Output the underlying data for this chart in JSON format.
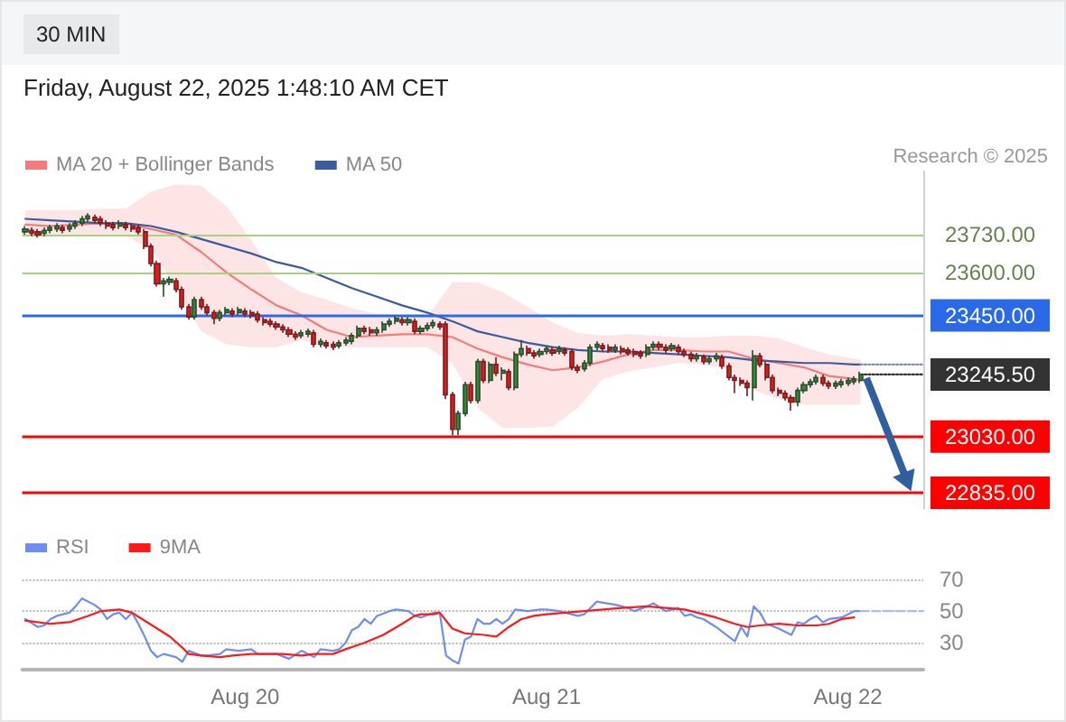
{
  "chart_data": [
    {
      "type": "candlestick",
      "subtitle": "Friday, August 22, 2025 1:48:10 AM CET",
      "annotations": [
        "30 MIN",
        "Research © 2025"
      ],
      "legend": "top left",
      "marker": "none",
      "tick_labels": "y",
      "xlim": [
        "2025-08-19T06:15",
        "2025-08-22T06:00"
      ],
      "ylim": [
        22780,
        23950
      ],
      "yticks": [
        {
          "value": 22835,
          "label": "22835.00"
        },
        {
          "value": 23030,
          "label": "23030.00"
        },
        {
          "value": 23245.5,
          "label": "23245.50"
        },
        {
          "value": 23450,
          "label": "23450.00"
        },
        {
          "value": 23600,
          "label": "23600.00"
        },
        {
          "value": 23730,
          "label": "23730.00"
        }
      ],
      "x": [
        "2025-08-19T06:30",
        "2025-08-19T07:00",
        "2025-08-19T07:30",
        "2025-08-19T08:00",
        "2025-08-19T08:30",
        "2025-08-19T09:00",
        "2025-08-19T09:30",
        "2025-08-19T10:00",
        "2025-08-19T10:30",
        "2025-08-19T11:00",
        "2025-08-19T11:30",
        "2025-08-19T12:00",
        "2025-08-19T12:30",
        "2025-08-19T13:00",
        "2025-08-19T13:30",
        "2025-08-19T14:00",
        "2025-08-19T14:30",
        "2025-08-19T15:00",
        "2025-08-19T15:30",
        "2025-08-19T16:00",
        "2025-08-19T16:30",
        "2025-08-19T17:00",
        "2025-08-19T17:30",
        "2025-08-19T18:00",
        "2025-08-19T18:30",
        "2025-08-19T19:00",
        "2025-08-19T19:30",
        "2025-08-19T20:00",
        "2025-08-19T20:30",
        "2025-08-19T21:00",
        "2025-08-19T21:30",
        "2025-08-19T22:00",
        "2025-08-19T22:30",
        "2025-08-19T23:00",
        "2025-08-19T23:30",
        "2025-08-20T00:00",
        "2025-08-20T00:30",
        "2025-08-20T01:00",
        "2025-08-20T01:30",
        "2025-08-20T02:00",
        "2025-08-20T02:30",
        "2025-08-20T03:00",
        "2025-08-20T03:30",
        "2025-08-20T04:00",
        "2025-08-20T04:30",
        "2025-08-20T05:00",
        "2025-08-20T05:30",
        "2025-08-20T06:00",
        "2025-08-20T06:30",
        "2025-08-20T07:00",
        "2025-08-20T07:30",
        "2025-08-20T08:00",
        "2025-08-20T08:30",
        "2025-08-20T09:00",
        "2025-08-20T09:30",
        "2025-08-20T10:00",
        "2025-08-20T10:30",
        "2025-08-20T11:00",
        "2025-08-20T11:30",
        "2025-08-20T12:00",
        "2025-08-20T12:30",
        "2025-08-20T13:00",
        "2025-08-20T13:30",
        "2025-08-20T14:00",
        "2025-08-20T14:30",
        "2025-08-20T15:00",
        "2025-08-20T15:30",
        "2025-08-20T16:00",
        "2025-08-20T16:30",
        "2025-08-20T17:00",
        "2025-08-20T17:30",
        "2025-08-20T18:00",
        "2025-08-20T18:30",
        "2025-08-20T19:00",
        "2025-08-20T19:30",
        "2025-08-20T20:00",
        "2025-08-20T20:30",
        "2025-08-20T21:00",
        "2025-08-20T21:30",
        "2025-08-20T22:00",
        "2025-08-20T22:30",
        "2025-08-20T23:00",
        "2025-08-20T23:30",
        "2025-08-21T00:00",
        "2025-08-21T00:30",
        "2025-08-21T01:00",
        "2025-08-21T01:30",
        "2025-08-21T02:00",
        "2025-08-21T02:30",
        "2025-08-21T03:00",
        "2025-08-21T03:30",
        "2025-08-21T04:00",
        "2025-08-21T04:30",
        "2025-08-21T05:00",
        "2025-08-21T05:30",
        "2025-08-21T06:00",
        "2025-08-21T06:30",
        "2025-08-21T07:00",
        "2025-08-21T07:30",
        "2025-08-21T08:00",
        "2025-08-21T08:30",
        "2025-08-21T09:00",
        "2025-08-21T09:30",
        "2025-08-21T10:00",
        "2025-08-21T10:30",
        "2025-08-21T11:00",
        "2025-08-21T11:30",
        "2025-08-21T12:00",
        "2025-08-21T12:30",
        "2025-08-21T13:00",
        "2025-08-21T13:30",
        "2025-08-21T14:00",
        "2025-08-21T14:30",
        "2025-08-21T15:00",
        "2025-08-21T15:30",
        "2025-08-21T16:00",
        "2025-08-21T16:30",
        "2025-08-21T17:00",
        "2025-08-21T17:30",
        "2025-08-21T18:00",
        "2025-08-21T18:30",
        "2025-08-21T19:00",
        "2025-08-21T19:30",
        "2025-08-21T20:00",
        "2025-08-21T20:30",
        "2025-08-21T21:00",
        "2025-08-21T21:30",
        "2025-08-21T22:00",
        "2025-08-21T22:30",
        "2025-08-21T23:00",
        "2025-08-21T23:30",
        "2025-08-22T00:00",
        "2025-08-22T00:30",
        "2025-08-22T01:00"
      ],
      "ohlc": [
        [
          23740,
          23760,
          23730,
          23750
        ],
        [
          23745,
          23755,
          23725,
          23735
        ],
        [
          23740,
          23750,
          23720,
          23730
        ],
        [
          23735,
          23755,
          23725,
          23745
        ],
        [
          23745,
          23765,
          23735,
          23755
        ],
        [
          23750,
          23770,
          23740,
          23760
        ],
        [
          23755,
          23765,
          23735,
          23745
        ],
        [
          23750,
          23770,
          23740,
          23760
        ],
        [
          23760,
          23780,
          23750,
          23770
        ],
        [
          23770,
          23795,
          23760,
          23785
        ],
        [
          23785,
          23805,
          23775,
          23795
        ],
        [
          23790,
          23800,
          23770,
          23780
        ],
        [
          23785,
          23795,
          23760,
          23770
        ],
        [
          23770,
          23780,
          23750,
          23760
        ],
        [
          23765,
          23775,
          23745,
          23755
        ],
        [
          23760,
          23780,
          23750,
          23770
        ],
        [
          23765,
          23775,
          23745,
          23755
        ],
        [
          23760,
          23770,
          23740,
          23750
        ],
        [
          23755,
          23765,
          23730,
          23740
        ],
        [
          23740,
          23750,
          23680,
          23690
        ],
        [
          23690,
          23700,
          23620,
          23630
        ],
        [
          23630,
          23640,
          23550,
          23560
        ],
        [
          23560,
          23580,
          23515,
          23570
        ],
        [
          23565,
          23585,
          23555,
          23575
        ],
        [
          23570,
          23580,
          23530,
          23540
        ],
        [
          23540,
          23550,
          23470,
          23480
        ],
        [
          23480,
          23490,
          23435,
          23445
        ],
        [
          23445,
          23515,
          23435,
          23505
        ],
        [
          23505,
          23515,
          23470,
          23480
        ],
        [
          23480,
          23490,
          23450,
          23460
        ],
        [
          23460,
          23470,
          23420,
          23440
        ],
        [
          23440,
          23470,
          23430,
          23460
        ],
        [
          23460,
          23480,
          23450,
          23470
        ],
        [
          23465,
          23475,
          23445,
          23455
        ],
        [
          23460,
          23480,
          23450,
          23470
        ],
        [
          23465,
          23475,
          23445,
          23455
        ],
        [
          23460,
          23470,
          23440,
          23450
        ],
        [
          23455,
          23465,
          23425,
          23435
        ],
        [
          23435,
          23445,
          23415,
          23425
        ],
        [
          23430,
          23440,
          23410,
          23420
        ],
        [
          23420,
          23430,
          23400,
          23410
        ],
        [
          23410,
          23420,
          23390,
          23400
        ],
        [
          23400,
          23410,
          23375,
          23385
        ],
        [
          23385,
          23395,
          23365,
          23375
        ],
        [
          23380,
          23400,
          23370,
          23390
        ],
        [
          23385,
          23405,
          23375,
          23395
        ],
        [
          23390,
          23400,
          23340,
          23350
        ],
        [
          23350,
          23370,
          23340,
          23360
        ],
        [
          23355,
          23365,
          23335,
          23345
        ],
        [
          23350,
          23360,
          23330,
          23340
        ],
        [
          23345,
          23365,
          23335,
          23355
        ],
        [
          23355,
          23375,
          23345,
          23365
        ],
        [
          23360,
          23390,
          23350,
          23380
        ],
        [
          23380,
          23415,
          23370,
          23405
        ],
        [
          23405,
          23415,
          23385,
          23395
        ],
        [
          23400,
          23410,
          23380,
          23390
        ],
        [
          23390,
          23410,
          23380,
          23400
        ],
        [
          23400,
          23430,
          23390,
          23420
        ],
        [
          23420,
          23440,
          23410,
          23430
        ],
        [
          23430,
          23450,
          23420,
          23440
        ],
        [
          23435,
          23445,
          23415,
          23425
        ],
        [
          23425,
          23445,
          23415,
          23435
        ],
        [
          23430,
          23440,
          23385,
          23395
        ],
        [
          23395,
          23415,
          23385,
          23405
        ],
        [
          23405,
          23425,
          23395,
          23415
        ],
        [
          23415,
          23435,
          23405,
          23425
        ],
        [
          23420,
          23430,
          23400,
          23410
        ],
        [
          23420,
          23430,
          23160,
          23175
        ],
        [
          23175,
          23185,
          23035,
          23055
        ],
        [
          23055,
          23120,
          23035,
          23110
        ],
        [
          23110,
          23220,
          23100,
          23210
        ],
        [
          23210,
          23220,
          23145,
          23155
        ],
        [
          23155,
          23300,
          23145,
          23290
        ],
        [
          23290,
          23300,
          23215,
          23225
        ],
        [
          23225,
          23290,
          23215,
          23280
        ],
        [
          23280,
          23305,
          23240,
          23250
        ],
        [
          23250,
          23270,
          23225,
          23260
        ],
        [
          23255,
          23265,
          23190,
          23200
        ],
        [
          23200,
          23325,
          23190,
          23315
        ],
        [
          23315,
          23365,
          23305,
          23335
        ],
        [
          23335,
          23345,
          23310,
          23320
        ],
        [
          23320,
          23330,
          23300,
          23310
        ],
        [
          23315,
          23335,
          23305,
          23325
        ],
        [
          23325,
          23345,
          23315,
          23335
        ],
        [
          23330,
          23340,
          23310,
          23320
        ],
        [
          23325,
          23345,
          23315,
          23335
        ],
        [
          23330,
          23340,
          23310,
          23320
        ],
        [
          23325,
          23335,
          23260,
          23270
        ],
        [
          23270,
          23280,
          23250,
          23260
        ],
        [
          23265,
          23295,
          23255,
          23285
        ],
        [
          23285,
          23350,
          23275,
          23340
        ],
        [
          23340,
          23360,
          23330,
          23350
        ],
        [
          23345,
          23355,
          23325,
          23335
        ],
        [
          23340,
          23350,
          23320,
          23330
        ],
        [
          23330,
          23350,
          23320,
          23340
        ],
        [
          23335,
          23345,
          23315,
          23325
        ],
        [
          23330,
          23340,
          23310,
          23320
        ],
        [
          23325,
          23335,
          23305,
          23315
        ],
        [
          23320,
          23330,
          23300,
          23310
        ],
        [
          23315,
          23350,
          23305,
          23340
        ],
        [
          23340,
          23360,
          23330,
          23350
        ],
        [
          23350,
          23360,
          23330,
          23340
        ],
        [
          23340,
          23350,
          23320,
          23330
        ],
        [
          23335,
          23355,
          23325,
          23345
        ],
        [
          23340,
          23350,
          23315,
          23325
        ],
        [
          23325,
          23335,
          23305,
          23315
        ],
        [
          23315,
          23325,
          23290,
          23300
        ],
        [
          23300,
          23320,
          23290,
          23310
        ],
        [
          23305,
          23315,
          23280,
          23290
        ],
        [
          23290,
          23310,
          23280,
          23300
        ],
        [
          23300,
          23320,
          23290,
          23310
        ],
        [
          23305,
          23315,
          23265,
          23275
        ],
        [
          23275,
          23285,
          23225,
          23235
        ],
        [
          23235,
          23245,
          23180,
          23225
        ],
        [
          23225,
          23235,
          23205,
          23215
        ],
        [
          23215,
          23225,
          23170,
          23200
        ],
        [
          23200,
          23330,
          23155,
          23310
        ],
        [
          23310,
          23320,
          23270,
          23280
        ],
        [
          23280,
          23290,
          23225,
          23235
        ],
        [
          23235,
          23245,
          23180,
          23190
        ],
        [
          23190,
          23200,
          23170,
          23180
        ],
        [
          23180,
          23190,
          23155,
          23165
        ],
        [
          23165,
          23175,
          23120,
          23150
        ],
        [
          23150,
          23200,
          23135,
          23190
        ],
        [
          23190,
          23220,
          23180,
          23210
        ],
        [
          23210,
          23230,
          23200,
          23220
        ],
        [
          23220,
          23245,
          23210,
          23235
        ],
        [
          23235,
          23245,
          23205,
          23215
        ],
        [
          23215,
          23225,
          23195,
          23205
        ],
        [
          23205,
          23225,
          23195,
          23215
        ],
        [
          23210,
          23230,
          23200,
          23220
        ],
        [
          23215,
          23235,
          23205,
          23225
        ],
        [
          23220,
          23240,
          23210,
          23230
        ],
        [
          23225,
          23255,
          23215,
          23245.5
        ]
      ],
      "series": [
        {
          "type": "line",
          "name": "MA 20 + Bollinger Bands",
          "color": "#f47c7c",
          "x": [
            "2025-08-19T06:30",
            "2025-08-19T08:30",
            "2025-08-19T10:30",
            "2025-08-19T12:30",
            "2025-08-19T14:30",
            "2025-08-19T16:30",
            "2025-08-19T18:30",
            "2025-08-19T20:30",
            "2025-08-19T22:30",
            "2025-08-20T00:30",
            "2025-08-20T02:30",
            "2025-08-20T04:30",
            "2025-08-20T06:30",
            "2025-08-20T08:30",
            "2025-08-20T10:30",
            "2025-08-20T12:30",
            "2025-08-20T14:30",
            "2025-08-20T16:30",
            "2025-08-20T18:30",
            "2025-08-20T20:30",
            "2025-08-20T22:30",
            "2025-08-21T00:30",
            "2025-08-21T02:30",
            "2025-08-21T04:30",
            "2025-08-21T06:30",
            "2025-08-21T08:30",
            "2025-08-21T10:30",
            "2025-08-21T12:30",
            "2025-08-21T14:30",
            "2025-08-21T16:30",
            "2025-08-21T18:30",
            "2025-08-21T20:30",
            "2025-08-21T22:30",
            "2025-08-22T00:30",
            "2025-08-22T01:00"
          ],
          "values": [
            23765,
            23760,
            23765,
            23770,
            23770,
            23750,
            23730,
            23670,
            23600,
            23540,
            23485,
            23450,
            23400,
            23375,
            23380,
            23385,
            23385,
            23375,
            23335,
            23305,
            23280,
            23260,
            23270,
            23290,
            23315,
            23330,
            23330,
            23325,
            23325,
            23300,
            23285,
            23270,
            23240,
            23230,
            23225
          ],
          "upper": [
            23815,
            23815,
            23815,
            23820,
            23820,
            23880,
            23905,
            23900,
            23830,
            23710,
            23580,
            23530,
            23505,
            23475,
            23455,
            23450,
            23445,
            23565,
            23565,
            23530,
            23480,
            23425,
            23390,
            23380,
            23385,
            23380,
            23375,
            23375,
            23380,
            23380,
            23370,
            23340,
            23315,
            23300,
            23295
          ],
          "lower": [
            23725,
            23725,
            23725,
            23725,
            23725,
            23680,
            23545,
            23395,
            23350,
            23340,
            23340,
            23365,
            23340,
            23340,
            23340,
            23340,
            23340,
            23285,
            23130,
            23060,
            23060,
            23065,
            23130,
            23230,
            23255,
            23270,
            23285,
            23280,
            23265,
            23190,
            23160,
            23140,
            23140,
            23140,
            23140
          ]
        },
        {
          "type": "line",
          "name": "MA 50",
          "color": "#3a5c9e",
          "x": [
            "2025-08-19T06:30",
            "2025-08-19T08:30",
            "2025-08-19T10:30",
            "2025-08-19T12:30",
            "2025-08-19T14:30",
            "2025-08-19T16:30",
            "2025-08-19T18:30",
            "2025-08-19T20:30",
            "2025-08-19T22:30",
            "2025-08-20T00:30",
            "2025-08-20T02:30",
            "2025-08-20T04:30",
            "2025-08-20T06:30",
            "2025-08-20T08:30",
            "2025-08-20T10:30",
            "2025-08-20T12:30",
            "2025-08-20T14:30",
            "2025-08-20T16:30",
            "2025-08-20T18:30",
            "2025-08-20T20:30",
            "2025-08-20T22:30",
            "2025-08-21T00:30",
            "2025-08-21T02:30",
            "2025-08-21T04:30",
            "2025-08-21T06:30",
            "2025-08-21T08:30",
            "2025-08-21T10:30",
            "2025-08-21T12:30",
            "2025-08-21T14:30",
            "2025-08-21T16:30",
            "2025-08-21T18:30",
            "2025-08-21T20:30",
            "2025-08-21T22:30",
            "2025-08-22T00:30",
            "2025-08-22T01:00"
          ],
          "values": [
            23785,
            23780,
            23775,
            23770,
            23770,
            23760,
            23740,
            23715,
            23690,
            23665,
            23635,
            23615,
            23580,
            23545,
            23515,
            23485,
            23460,
            23430,
            23395,
            23375,
            23355,
            23340,
            23330,
            23325,
            23325,
            23320,
            23315,
            23310,
            23305,
            23295,
            23290,
            23285,
            23285,
            23280,
            23280
          ]
        },
        {
          "type": "line",
          "color": "#7f8fb5",
          "line_style": "dotted",
          "x": [
            "2025-08-22T01:00",
            "2025-08-22T06:00"
          ],
          "values": [
            23280,
            23280
          ]
        },
        {
          "type": "line",
          "color": "#333333",
          "line_style": "dotted",
          "x": [
            "2025-08-22T01:00",
            "2025-08-22T06:00"
          ],
          "values": [
            23245.5,
            23245.5
          ]
        }
      ],
      "ref_lines": [
        {
          "axis": "y",
          "value": 23730,
          "color": "#a6d27e"
        },
        {
          "axis": "y",
          "value": 23600,
          "color": "#a6d27e"
        },
        {
          "axis": "y",
          "value": 23450,
          "color": "#2a6ae6"
        },
        {
          "axis": "y",
          "value": 23030,
          "color": "#ff0000"
        },
        {
          "axis": "y",
          "value": 22835,
          "color": "#ff0000"
        }
      ]
    },
    {
      "type": "line",
      "legend": "top left",
      "marker": "none",
      "grid": "y",
      "xlim": [
        "2025-08-19T06:15",
        "2025-08-22T06:00"
      ],
      "xticks": [
        {
          "value": "2025-08-20",
          "label": "Aug 20"
        },
        {
          "value": "2025-08-21",
          "label": "Aug 21"
        },
        {
          "value": "2025-08-22",
          "label": "Aug 22"
        }
      ],
      "ylim": [
        13,
        70
      ],
      "yticks": [
        30,
        50,
        70
      ],
      "series": [
        {
          "name": "RSI",
          "color": "#6f8ff0",
          "x": [
            "2025-08-19T06:30",
            "2025-08-19T07:30",
            "2025-08-19T08:00",
            "2025-08-19T08:30",
            "2025-08-19T09:00",
            "2025-08-19T10:00",
            "2025-08-19T10:30",
            "2025-08-19T11:00",
            "2025-08-19T12:00",
            "2025-08-19T12:30",
            "2025-08-19T13:00",
            "2025-08-19T13:30",
            "2025-08-19T14:00",
            "2025-08-19T14:30",
            "2025-08-19T15:00",
            "2025-08-19T15:30",
            "2025-08-19T16:00",
            "2025-08-19T16:30",
            "2025-08-19T17:00",
            "2025-08-19T17:30",
            "2025-08-19T18:30",
            "2025-08-19T19:00",
            "2025-08-19T19:30",
            "2025-08-19T20:30",
            "2025-08-19T21:00",
            "2025-08-19T22:00",
            "2025-08-19T22:30",
            "2025-08-19T23:30",
            "2025-08-20T00:30",
            "2025-08-20T01:00",
            "2025-08-20T01:30",
            "2025-08-20T02:30",
            "2025-08-20T03:30",
            "2025-08-20T04:30",
            "2025-08-20T05:00",
            "2025-08-20T05:30",
            "2025-08-20T06:00",
            "2025-08-20T07:00",
            "2025-08-20T07:30",
            "2025-08-20T08:00",
            "2025-08-20T08:30",
            "2025-08-20T09:00",
            "2025-08-20T09:30",
            "2025-08-20T10:00",
            "2025-08-20T10:30",
            "2025-08-20T11:30",
            "2025-08-20T12:00",
            "2025-08-20T13:00",
            "2025-08-20T13:30",
            "2025-08-20T14:00",
            "2025-08-20T15:00",
            "2025-08-20T15:30",
            "2025-08-20T16:00",
            "2025-08-20T16:30",
            "2025-08-20T17:00",
            "2025-08-20T17:30",
            "2025-08-20T18:00",
            "2025-08-20T18:30",
            "2025-08-20T19:00",
            "2025-08-20T19:30",
            "2025-08-20T20:00",
            "2025-08-20T20:30",
            "2025-08-20T21:00",
            "2025-08-20T21:30",
            "2025-08-20T22:30",
            "2025-08-20T23:30",
            "2025-08-21T00:00",
            "2025-08-21T01:00",
            "2025-08-21T02:00",
            "2025-08-21T02:30",
            "2025-08-21T03:00",
            "2025-08-21T04:00",
            "2025-08-21T05:30",
            "2025-08-21T06:30",
            "2025-08-21T07:00",
            "2025-08-21T08:00",
            "2025-08-21T08:30",
            "2025-08-21T09:30",
            "2025-08-21T10:00",
            "2025-08-21T10:30",
            "2025-08-21T11:00",
            "2025-08-21T11:30",
            "2025-08-21T12:00",
            "2025-08-21T12:30",
            "2025-08-21T13:30",
            "2025-08-21T14:30",
            "2025-08-21T15:00",
            "2025-08-21T15:30",
            "2025-08-21T16:00",
            "2025-08-21T16:30",
            "2025-08-21T17:00",
            "2025-08-21T17:30",
            "2025-08-21T18:30",
            "2025-08-21T19:30",
            "2025-08-21T20:00",
            "2025-08-21T20:30",
            "2025-08-21T21:00",
            "2025-08-21T21:30",
            "2025-08-21T22:00",
            "2025-08-21T22:30",
            "2025-08-21T23:30",
            "2025-08-22T00:30",
            "2025-08-22T01:00"
          ],
          "values": [
            45,
            40,
            41,
            45,
            47,
            49,
            53,
            58,
            54,
            51,
            45,
            48,
            49,
            45,
            49,
            42,
            34,
            25,
            21,
            23,
            21,
            18,
            25,
            22,
            22,
            23,
            26,
            25,
            26,
            23,
            23,
            23,
            20,
            25,
            23,
            21,
            26,
            25,
            26,
            30,
            38,
            40,
            45,
            42,
            47,
            50,
            51,
            50,
            47,
            46,
            49,
            49,
            22,
            19,
            17,
            32,
            34,
            45,
            42,
            42,
            45,
            42,
            45,
            51,
            50,
            51,
            51,
            50,
            48,
            47,
            48,
            56,
            54,
            52,
            50,
            53,
            55,
            50,
            51,
            52,
            47,
            48,
            46,
            45,
            40,
            34,
            31,
            40,
            34,
            53,
            49,
            42,
            39,
            35,
            43,
            42,
            45,
            47,
            43,
            45,
            46,
            50,
            50
          ]
        },
        {
          "name": "9MA",
          "color": "#ff1a1a",
          "x": [
            "2025-08-19T06:30",
            "2025-08-19T08:30",
            "2025-08-19T10:00",
            "2025-08-19T11:30",
            "2025-08-19T12:30",
            "2025-08-19T14:00",
            "2025-08-19T15:00",
            "2025-08-19T16:00",
            "2025-08-19T17:00",
            "2025-08-19T18:00",
            "2025-08-19T19:00",
            "2025-08-19T19:30",
            "2025-08-19T20:30",
            "2025-08-19T22:00",
            "2025-08-19T23:00",
            "2025-08-20T00:30",
            "2025-08-20T02:00",
            "2025-08-20T03:00",
            "2025-08-20T04:30",
            "2025-08-20T05:30",
            "2025-08-20T07:00",
            "2025-08-20T08:00",
            "2025-08-20T09:30",
            "2025-08-20T11:00",
            "2025-08-20T12:30",
            "2025-08-20T13:30",
            "2025-08-20T14:00",
            "2025-08-20T15:00",
            "2025-08-20T15:30",
            "2025-08-20T16:30",
            "2025-08-20T17:30",
            "2025-08-20T19:00",
            "2025-08-20T20:00",
            "2025-08-20T21:00",
            "2025-08-20T22:00",
            "2025-08-20T23:00",
            "2025-08-21T00:00",
            "2025-08-21T01:30",
            "2025-08-21T03:00",
            "2025-08-21T04:30",
            "2025-08-21T06:00",
            "2025-08-21T08:00",
            "2025-08-21T09:30",
            "2025-08-21T11:00",
            "2025-08-21T12:00",
            "2025-08-21T13:30",
            "2025-08-21T15:00",
            "2025-08-21T16:00",
            "2025-08-21T17:00",
            "2025-08-21T18:30",
            "2025-08-21T20:00",
            "2025-08-21T21:30",
            "2025-08-21T22:30",
            "2025-08-21T23:30",
            "2025-08-22T00:30"
          ],
          "values": [
            44,
            42,
            43,
            47,
            50,
            51,
            49,
            44,
            39,
            34,
            27,
            23,
            22,
            21,
            22,
            23,
            23,
            23,
            22,
            23,
            23,
            26,
            30,
            35,
            42,
            47,
            48,
            48,
            49,
            39,
            36,
            35,
            34,
            40,
            45,
            47,
            48,
            49,
            50,
            51,
            52,
            53,
            52,
            51,
            49,
            46,
            42,
            40,
            41,
            42,
            41,
            41,
            42,
            45,
            46
          ]
        },
        {
          "color": "#a9bcf7",
          "line_style": "dashed",
          "x": [
            "2025-08-22T01:00",
            "2025-08-22T06:00"
          ],
          "values": [
            50,
            50
          ]
        }
      ]
    }
  ]
}
